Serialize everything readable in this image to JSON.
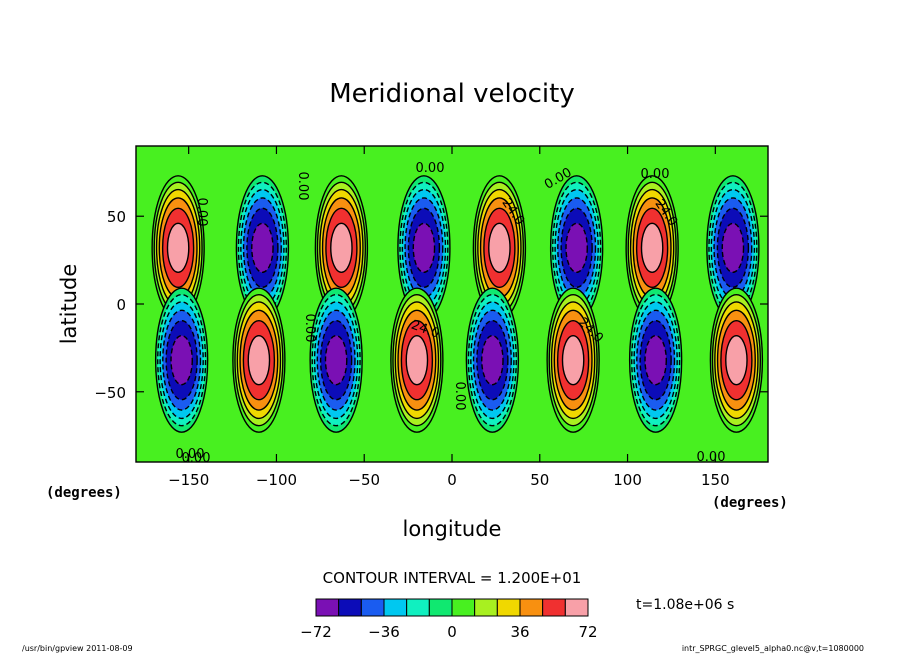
{
  "title": "Meridional velocity",
  "footer_left": "/usr/bin/gpview  2011-08-09",
  "footer_right": "intr_SPRGC_glevel5_alpha0.nc@v,t=1080000",
  "contour_interval_text": "CONTOUR INTERVAL = 1.200E+01",
  "time_label": "t=1.08e+06 s",
  "palette": [
    "#7a10b4",
    "#0c0cb8",
    "#1a5cf0",
    "#00c8f0",
    "#10f0c0",
    "#10e870",
    "#48f020",
    "#a8f020",
    "#f0d800",
    "#f89010",
    "#f03030",
    "#f8a0a8"
  ],
  "chart_data": {
    "type": "heatmap",
    "title": "Meridional velocity",
    "xlabel": "longitude",
    "ylabel": "latitude",
    "x_unit": "(degrees)",
    "y_unit": "(degrees)",
    "xlim": [
      -180,
      180
    ],
    "ylim": [
      -90,
      90
    ],
    "xticks": [
      -150,
      -100,
      -50,
      0,
      50,
      100,
      150
    ],
    "yticks": [
      50,
      0,
      -50
    ],
    "contour_interval": 12,
    "colorbar": {
      "boundaries": [
        -72,
        -60,
        -48,
        -36,
        -24,
        -12,
        0,
        12,
        24,
        36,
        48,
        60,
        72
      ],
      "tick_labels": [
        "-72",
        "-36",
        "0",
        "36",
        "72"
      ]
    },
    "cells": [
      {
        "lon": -156,
        "lat": 32,
        "peak": 66
      },
      {
        "lon": -108,
        "lat": 32,
        "peak": -66
      },
      {
        "lon": -63,
        "lat": 32,
        "peak": 66
      },
      {
        "lon": -16,
        "lat": 32,
        "peak": -66
      },
      {
        "lon": 27,
        "lat": 32,
        "peak": 66
      },
      {
        "lon": 71,
        "lat": 32,
        "peak": -66
      },
      {
        "lon": 114,
        "lat": 32,
        "peak": 66
      },
      {
        "lon": 160,
        "lat": 32,
        "peak": -66
      },
      {
        "lon": -154,
        "lat": -32,
        "peak": -66
      },
      {
        "lon": -110,
        "lat": -32,
        "peak": 66
      },
      {
        "lon": -66,
        "lat": -32,
        "peak": -66
      },
      {
        "lon": -20,
        "lat": -32,
        "peak": 66
      },
      {
        "lon": 23,
        "lat": -32,
        "peak": -66
      },
      {
        "lon": 69,
        "lat": -32,
        "peak": 66
      },
      {
        "lon": 116,
        "lat": -32,
        "peak": -66
      },
      {
        "lon": 162,
        "lat": -32,
        "peak": 66
      }
    ],
    "contour_labels": [
      "0.00",
      "0.00",
      "0.00",
      "0.00",
      "0.00",
      "0.00",
      "0.00",
      "0.00",
      "0.00",
      "0.00",
      "24.0",
      "24.0",
      "24.0",
      "24.0"
    ]
  }
}
